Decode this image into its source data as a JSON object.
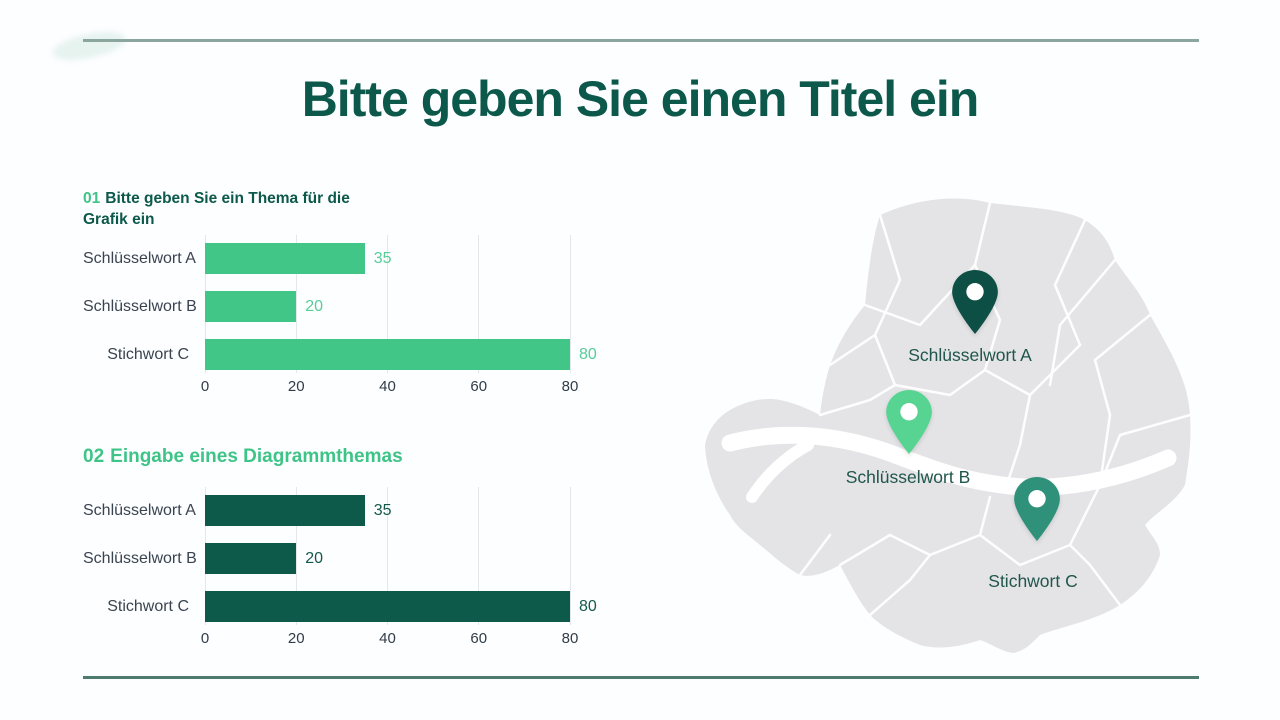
{
  "title": "Bitte geben Sie einen Titel ein",
  "section1": {
    "number": "01",
    "text": "Bitte geben Sie ein Thema für die Grafik ein"
  },
  "section2": {
    "number": "02",
    "text": "Eingabe eines Diagrammthemas"
  },
  "chart_data": [
    {
      "type": "bar",
      "orientation": "horizontal",
      "title": "01 Bitte geben Sie ein Thema für die Grafik ein",
      "categories": [
        "Schlüsselwort A",
        "Schlüsselwort B",
        "Stichwort C"
      ],
      "values": [
        35,
        20,
        80
      ],
      "xlim": [
        0,
        80
      ],
      "xticks": [
        0,
        20,
        40,
        60,
        80
      ],
      "grid": true,
      "legend": false,
      "bar_color": "#41c687",
      "value_label_color": "#56cd96"
    },
    {
      "type": "bar",
      "orientation": "horizontal",
      "title": "02 Eingabe eines Diagrammthemas",
      "categories": [
        "Schlüsselwort A",
        "Schlüsselwort B",
        "Stichwort C"
      ],
      "values": [
        35,
        20,
        80
      ],
      "xlim": [
        0,
        80
      ],
      "xticks": [
        0,
        20,
        40,
        60,
        80
      ],
      "grid": true,
      "legend": false,
      "bar_color": "#0d5a4b",
      "value_label_color": "#14584a"
    }
  ],
  "map": {
    "markers": [
      {
        "label": "Schlüsselwort A",
        "color": "#0d4f44"
      },
      {
        "label": "Schlüsselwort B",
        "color": "#57d492"
      },
      {
        "label": "Stichwort C",
        "color": "#2f9179"
      }
    ]
  },
  "colors": {
    "primary_dark": "#0c594b",
    "accent_green": "#3ec487",
    "top_rule": "#8ba69f",
    "bottom_rule": "#4e7b70",
    "label_slate": "#3a4450",
    "map_land": "#e4e4e7",
    "map_label": "#20564b"
  }
}
